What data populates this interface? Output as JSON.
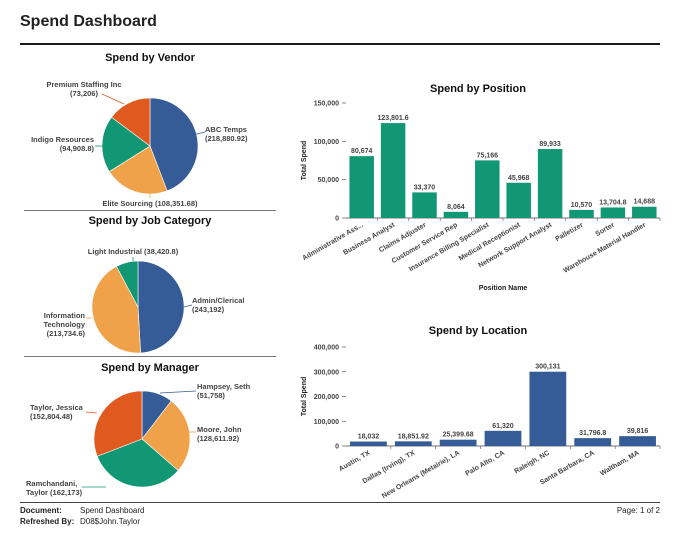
{
  "report": {
    "title": "Spend Dashboard",
    "footer": {
      "document_label": "Document:",
      "document_value": "Spend Dashboard",
      "refreshed_label": "Refreshed By:",
      "refreshed_value": "D08$John.Taylor",
      "page": "Page: 1 of 2"
    }
  },
  "colors": {
    "blue": "#355C96",
    "orange": "#F0A24A",
    "green": "#129774",
    "red": "#E0591E"
  },
  "chart_data": [
    {
      "id": "vendor",
      "type": "pie",
      "title": "Spend by Vendor",
      "slices": [
        {
          "label": [
            "ABC Temps",
            "(218,880.92)"
          ],
          "value": 218880.92,
          "color": "#355C96"
        },
        {
          "label": [
            "Elite Sourcing (108,351.68)"
          ],
          "value": 108351.68,
          "color": "#F0A24A"
        },
        {
          "label": [
            "Indigo Resources",
            "(94,908.8)"
          ],
          "value": 94908.8,
          "color": "#129774"
        },
        {
          "label": [
            "Premium Staffing Inc",
            "(73,206)"
          ],
          "value": 73206,
          "color": "#E0591E"
        }
      ]
    },
    {
      "id": "category",
      "type": "pie",
      "title": "Spend by Job Category",
      "slices": [
        {
          "label": [
            "Admin/Clerical",
            "(243,192)"
          ],
          "value": 243192,
          "color": "#355C96"
        },
        {
          "label": [
            "Information",
            "Technology",
            "(213,734.6)"
          ],
          "value": 213734.6,
          "color": "#F0A24A"
        },
        {
          "label": [
            "Light Industrial (38,420.8)"
          ],
          "value": 38420.8,
          "color": "#129774"
        }
      ]
    },
    {
      "id": "manager",
      "type": "pie",
      "title": "Spend by Manager",
      "slices": [
        {
          "label": [
            "Hampsey, Seth",
            "(51,758)"
          ],
          "value": 51758,
          "color": "#355C96"
        },
        {
          "label": [
            "Moore, John",
            "(128,611.92)"
          ],
          "value": 128611.92,
          "color": "#F0A24A"
        },
        {
          "label": [
            "Ramchandani,",
            "Taylor (162,173)"
          ],
          "value": 162173,
          "color": "#129774"
        },
        {
          "label": [
            "Taylor, Jessica",
            "(152,804.48)"
          ],
          "value": 152804.48,
          "color": "#E0591E"
        }
      ]
    },
    {
      "id": "position",
      "type": "bar",
      "title": "Spend by Position",
      "xlabel": "Position Name",
      "ylabel": "Total Spend",
      "ylim": [
        0,
        150000
      ],
      "yticks": [
        0,
        50000,
        100000,
        150000
      ],
      "ytick_labels": [
        "0",
        "50,000",
        "100,000",
        "150,000"
      ],
      "color": "#129774",
      "categories": [
        "Administrative Ass...",
        "Business Analyst",
        "Claims Adjuster",
        "Customer Service Rep",
        "Insurance Billing Specialist",
        "Medical Receptionist",
        "Network Support Analyst",
        "Palletizer",
        "Sorter",
        "Warehouse Material Handler"
      ],
      "values": [
        80674,
        123801.6,
        33370,
        8064,
        75166,
        45968,
        89933,
        10570,
        13704.8,
        14688
      ],
      "value_labels": [
        "80,674",
        "123,801.6",
        "33,370",
        "8,064",
        "75,166",
        "45,968",
        "89,933",
        "10,570",
        "13,704.8",
        "14,688"
      ]
    },
    {
      "id": "location",
      "type": "bar",
      "title": "Spend by Location",
      "xlabel": "",
      "ylabel": "Total Spend",
      "ylim": [
        0,
        400000
      ],
      "yticks": [
        0,
        100000,
        200000,
        300000,
        400000
      ],
      "ytick_labels": [
        "0",
        "100,000",
        "200,000",
        "300,000",
        "400,000"
      ],
      "color": "#355C96",
      "categories": [
        "Austin, TX",
        "Dallas (Irving), TX",
        "New Orleans (Metairie), LA",
        "Palo Alto, CA",
        "Raleigh, NC",
        "Santa Barbara, CA",
        "Waltham, MA"
      ],
      "values": [
        18032,
        18851.92,
        25399.68,
        61320,
        300131,
        31796.8,
        39816
      ],
      "value_labels": [
        "18,032",
        "18,851.92",
        "25,399.68",
        "61,320",
        "300,131",
        "31,796.8",
        "39,816"
      ]
    }
  ]
}
